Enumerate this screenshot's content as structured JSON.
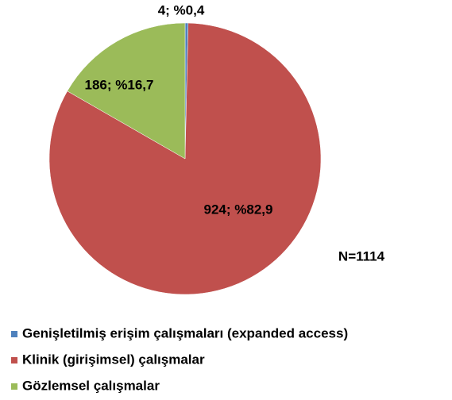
{
  "chart_data": {
    "type": "pie",
    "categories": [
      "Genişletilmiş erişim çalışmaları (expanded access)",
      "Klinik (girişimsel) çalışmalar",
      "Gözlemsel çalışmalar"
    ],
    "values": [
      4,
      924,
      186
    ],
    "value_labels": [
      "4; %0,4",
      "924; %82,9",
      "186; %16,7"
    ],
    "colors": [
      "#4f81bd",
      "#c0504d",
      "#9bbb59"
    ],
    "annotation": "N=1114",
    "legend": "bottom"
  }
}
